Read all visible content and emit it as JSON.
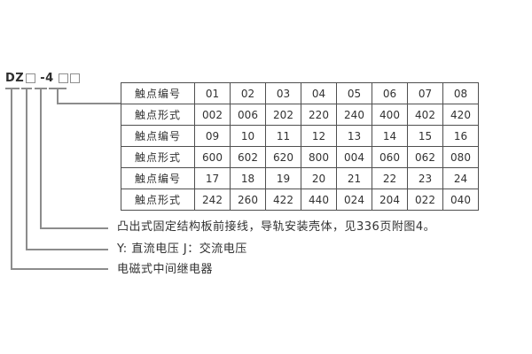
{
  "model_code": {
    "prefix": "DZ",
    "middle": "-4",
    "display": "DZ□-4□□"
  },
  "table": {
    "rows": [
      {
        "label": "触点编号",
        "values": [
          "01",
          "02",
          "03",
          "04",
          "05",
          "06",
          "07",
          "08"
        ]
      },
      {
        "label": "触点形式",
        "values": [
          "002",
          "006",
          "202",
          "220",
          "240",
          "400",
          "402",
          "420"
        ]
      },
      {
        "label": "触点编号",
        "values": [
          "09",
          "10",
          "11",
          "12",
          "13",
          "14",
          "15",
          "16"
        ]
      },
      {
        "label": "触点形式",
        "values": [
          "600",
          "602",
          "620",
          "800",
          "004",
          "060",
          "062",
          "080"
        ]
      },
      {
        "label": "触点编号",
        "values": [
          "17",
          "18",
          "19",
          "20",
          "21",
          "22",
          "23",
          "24"
        ]
      },
      {
        "label": "触点形式",
        "values": [
          "242",
          "260",
          "422",
          "440",
          "024",
          "204",
          "022",
          "040"
        ]
      }
    ]
  },
  "annotations": {
    "mounting": "凸出式固定结构板前接线，导轨安装壳体，见336页附图4。",
    "voltage": "Y: 直流电压  J：交流电压",
    "device": "电磁式中间继电器"
  },
  "colors": {
    "line": "#8c8c8c",
    "table_border": "#4f4f4f",
    "text": "#323232",
    "background": "#ffffff"
  }
}
